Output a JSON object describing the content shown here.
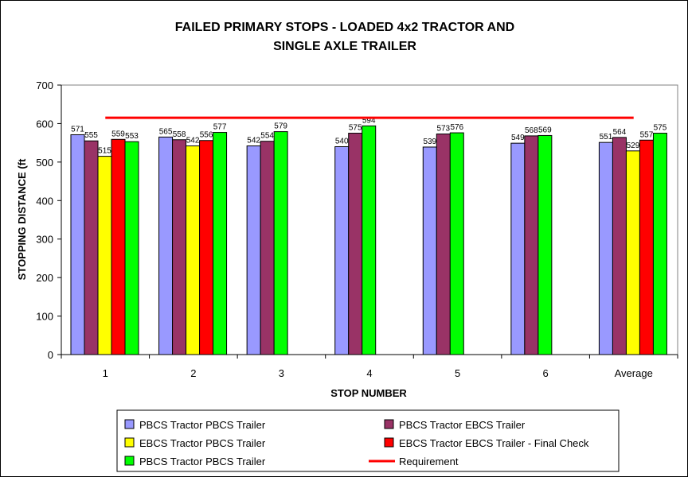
{
  "chart_data": {
    "type": "bar",
    "title_lines": [
      "FAILED PRIMARY STOPS - LOADED 4x2 TRACTOR AND",
      "SINGLE AXLE TRAILER"
    ],
    "xlabel": "STOP NUMBER",
    "ylabel": "STOPPING DISTANCE (ft",
    "ylim": [
      0,
      700
    ],
    "yticks": [
      "0",
      "100",
      "200",
      "300",
      "400",
      "500",
      "600",
      "700"
    ],
    "categories": [
      "1",
      "2",
      "3",
      "4",
      "5",
      "6",
      "Average"
    ],
    "grid": false,
    "legend_placement": "bottom",
    "series": [
      {
        "name": "PBCS Tractor PBCS Trailer",
        "color": "#9999FF",
        "values": [
          571,
          565,
          542,
          540,
          539,
          549,
          551
        ]
      },
      {
        "name": "PBCS Tractor EBCS Trailer",
        "color": "#993366",
        "values": [
          555,
          558,
          554,
          575,
          573,
          568,
          564
        ]
      },
      {
        "name": "EBCS Tractor PBCS Trailer",
        "color": "#FFFF00",
        "values": [
          515,
          542,
          null,
          null,
          null,
          null,
          529
        ]
      },
      {
        "name": "EBCS Tractor EBCS Trailer - Final Check",
        "color": "#FF0000",
        "values": [
          559,
          556,
          null,
          null,
          null,
          null,
          557
        ]
      },
      {
        "name": "PBCS Tractor PBCS Trailer",
        "color": "#00FF00",
        "values": [
          553,
          577,
          579,
          594,
          576,
          569,
          575
        ]
      }
    ],
    "reference_line": {
      "name": "Requirement",
      "color": "#FF0000",
      "value": 615
    },
    "data_labels": [
      [
        "571",
        "565",
        "542",
        "540",
        "539",
        "549",
        "551"
      ],
      [
        "555",
        "558",
        "554",
        "575",
        "573",
        "568",
        "564"
      ],
      [
        "515",
        "542",
        null,
        null,
        null,
        null,
        "529"
      ],
      [
        "559",
        "556",
        null,
        null,
        null,
        null,
        "557"
      ],
      [
        "553",
        "577",
        "579",
        "594",
        "576",
        "569",
        "575"
      ]
    ]
  }
}
